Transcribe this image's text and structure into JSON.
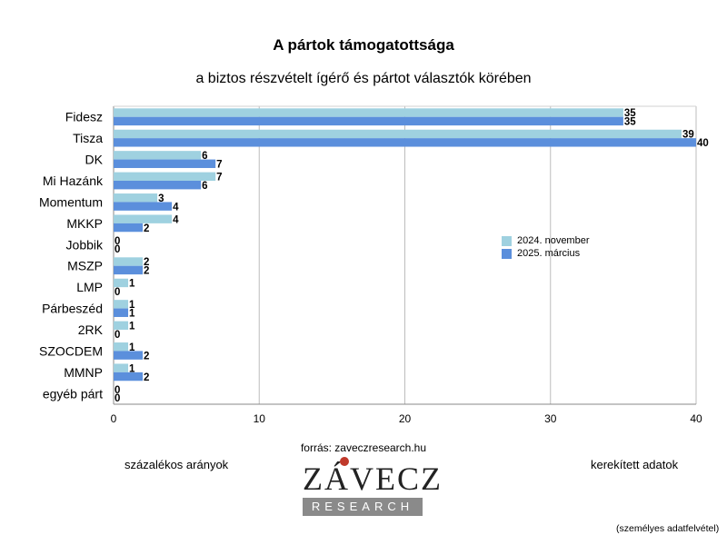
{
  "header": {
    "title": "A pártok támogatottsága",
    "subtitle": "a biztos részvételt ígérő és pártot választók körében"
  },
  "chart_data": {
    "type": "bar",
    "orientation": "horizontal",
    "title": "A pártok támogatottsága",
    "subtitle": "a biztos részvételt ígérő és pártot választók körében",
    "categories": [
      "Fidesz",
      "Tisza",
      "DK",
      "Mi Hazánk",
      "Momentum",
      "MKKP",
      "Jobbik",
      "MSZP",
      "LMP",
      "Párbeszéd",
      "2RK",
      "SZOCDEM",
      "MMNP",
      "egyéb párt"
    ],
    "series": [
      {
        "name": "2024. november",
        "color": "#9fd1e0",
        "values": [
          35,
          39,
          6,
          7,
          3,
          4,
          0,
          2,
          1,
          1,
          1,
          1,
          1,
          0
        ]
      },
      {
        "name": "2025. március",
        "color": "#5b8fdc",
        "values": [
          35,
          40,
          7,
          6,
          4,
          2,
          0,
          2,
          0,
          1,
          0,
          2,
          2,
          0
        ]
      }
    ],
    "xlim": [
      0,
      40
    ],
    "xticks": [
      "0",
      "10",
      "20",
      "30",
      "40"
    ],
    "grid": true,
    "legend_position": "right-middle"
  },
  "notes": {
    "source": "forrás: zaveczresearch.hu",
    "left": "százalékos arányok",
    "right": "kerekített adatok",
    "footnote": "(személyes adatfelvétel)"
  },
  "logo": {
    "word": "ZÁVECZ",
    "tagline": "RESEARCH"
  }
}
